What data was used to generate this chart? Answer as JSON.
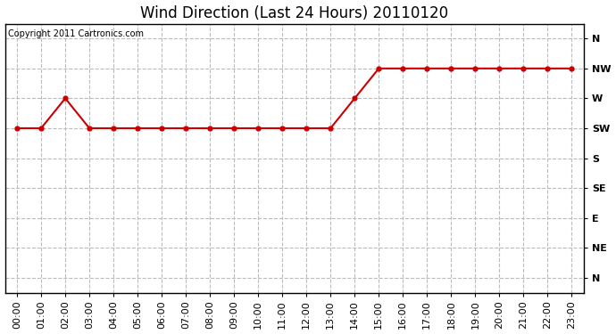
{
  "title": "Wind Direction (Last 24 Hours) 20110120",
  "copyright_text": "Copyright 2011 Cartronics.com",
  "line_color": "#cc0000",
  "marker_color": "#cc0000",
  "background_color": "#ffffff",
  "grid_color": "#bbbbbb",
  "x_labels": [
    "00:00",
    "01:00",
    "02:00",
    "03:00",
    "04:00",
    "05:00",
    "06:00",
    "07:00",
    "08:00",
    "09:00",
    "10:00",
    "11:00",
    "12:00",
    "13:00",
    "14:00",
    "15:00",
    "16:00",
    "17:00",
    "18:00",
    "19:00",
    "20:00",
    "21:00",
    "22:00",
    "23:00"
  ],
  "y_labels_bottom_to_top": [
    "N",
    "NE",
    "E",
    "SE",
    "S",
    "SW",
    "W",
    "NW",
    "N"
  ],
  "y_labels_top_to_bottom": [
    "N",
    "NW",
    "W",
    "SW",
    "S",
    "SE",
    "E",
    "NE",
    "N"
  ],
  "data_points": [
    5,
    5,
    6,
    5,
    5,
    5,
    5,
    5,
    5,
    5,
    5,
    5,
    5,
    5,
    6,
    7,
    7,
    7,
    7,
    7,
    7,
    7,
    7,
    7
  ],
  "ylim_min": 0,
  "ylim_max": 8,
  "title_fontsize": 12,
  "tick_fontsize": 8,
  "copyright_fontsize": 7
}
